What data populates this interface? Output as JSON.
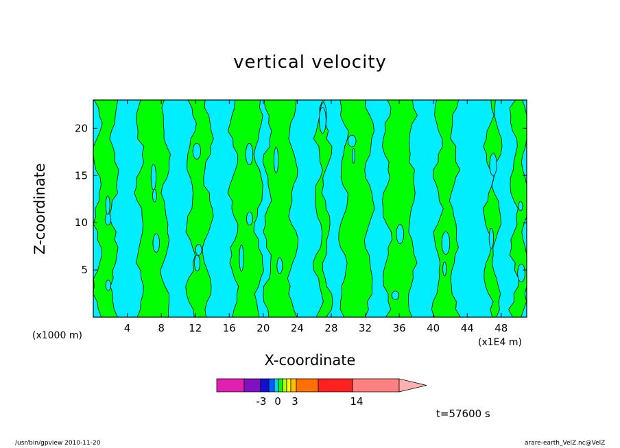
{
  "footer": {
    "left": "/usr/bin/gpview  2010-11-20",
    "right": "arare-earth_VelZ.nc@VelZ"
  },
  "timestamp": "t=57600 s",
  "colors": {
    "positive_fill": "#00ff00",
    "negative_fill": "#00eeff",
    "contour": "#000000"
  },
  "colorbar": {
    "colors": [
      "#e020b0",
      "#8010c0",
      "#1010d0",
      "#0060ff",
      "#00d0ff",
      "#00ff00",
      "#b0ff00",
      "#ffff00",
      "#ffc000",
      "#ff7000",
      "#ff2020",
      "#ff8080",
      "#ffb0b0"
    ],
    "labels": [
      "-3",
      "0",
      "3",
      "14"
    ]
  },
  "chart_data": {
    "type": "heatmap",
    "title": "vertical velocity",
    "xlabel": "X-coordinate",
    "ylabel": "Z-coordinate",
    "x_unit_label": "(x1E4 m)",
    "y_unit_label": "(x1000 m)",
    "xlim": [
      0,
      51
    ],
    "ylim": [
      0,
      23
    ],
    "x_ticks": [
      "4",
      "8",
      "12",
      "16",
      "20",
      "24",
      "28",
      "32",
      "36",
      "40",
      "44",
      "48"
    ],
    "y_ticks": [
      "5",
      "10",
      "15",
      "20"
    ],
    "x_tick_values": [
      4,
      8,
      12,
      16,
      20,
      24,
      28,
      32,
      36,
      40,
      44,
      48
    ],
    "y_tick_values": [
      5,
      10,
      15,
      20
    ],
    "bands": [
      {
        "x0": 0,
        "x1": 0.5,
        "sign": "neg"
      },
      {
        "x0": 0.5,
        "x1": 2.5,
        "sign": "pos"
      },
      {
        "x0": 2.5,
        "x1": 5.5,
        "sign": "neg"
      },
      {
        "x0": 5.5,
        "x1": 8.5,
        "sign": "pos"
      },
      {
        "x0": 8.5,
        "x1": 11.5,
        "sign": "neg"
      },
      {
        "x0": 11.5,
        "x1": 13.5,
        "sign": "pos"
      },
      {
        "x0": 13.5,
        "x1": 16.5,
        "sign": "neg"
      },
      {
        "x0": 16.5,
        "x1": 19.5,
        "sign": "pos"
      },
      {
        "x0": 19.5,
        "x1": 20.5,
        "sign": "neg"
      },
      {
        "x0": 20.5,
        "x1": 23.5,
        "sign": "pos"
      },
      {
        "x0": 23.5,
        "x1": 26.5,
        "sign": "neg"
      },
      {
        "x0": 26.5,
        "x1": 27.5,
        "sign": "pos"
      },
      {
        "x0": 27.5,
        "x1": 29.5,
        "sign": "neg"
      },
      {
        "x0": 29.5,
        "x1": 32.5,
        "sign": "pos"
      },
      {
        "x0": 32.5,
        "x1": 34.5,
        "sign": "neg"
      },
      {
        "x0": 34.5,
        "x1": 37.5,
        "sign": "pos"
      },
      {
        "x0": 37.5,
        "x1": 40.5,
        "sign": "neg"
      },
      {
        "x0": 40.5,
        "x1": 42.5,
        "sign": "pos"
      },
      {
        "x0": 42.5,
        "x1": 46.5,
        "sign": "neg"
      },
      {
        "x0": 46.5,
        "x1": 47.5,
        "sign": "pos"
      },
      {
        "x0": 47.5,
        "x1": 49.5,
        "sign": "neg"
      },
      {
        "x0": 49.5,
        "x1": 51,
        "sign": "pos"
      }
    ]
  }
}
